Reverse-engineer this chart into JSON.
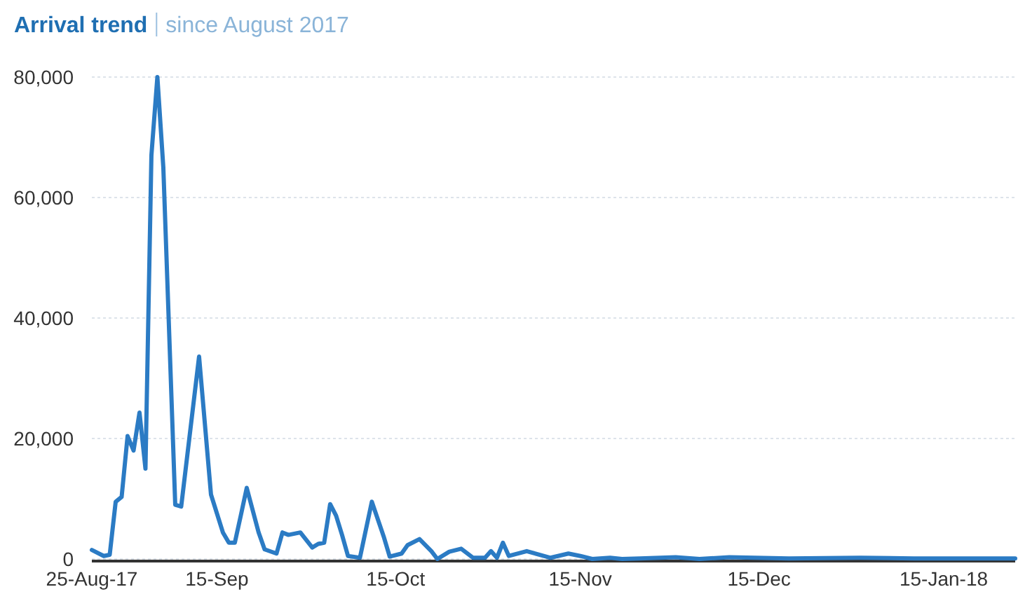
{
  "chart_data": {
    "type": "line",
    "title": "Arrival trend",
    "subtitle": "since August 2017",
    "x": [
      "2017-08-25",
      "2017-08-27",
      "2017-08-28",
      "2017-08-29",
      "2017-08-30",
      "2017-08-31",
      "2017-09-01",
      "2017-09-02",
      "2017-09-03",
      "2017-09-04",
      "2017-09-05",
      "2017-09-06",
      "2017-09-08",
      "2017-09-09",
      "2017-09-12",
      "2017-09-14",
      "2017-09-16",
      "2017-09-17",
      "2017-09-18",
      "2017-09-19",
      "2017-09-20",
      "2017-09-22",
      "2017-09-23",
      "2017-09-25",
      "2017-09-26",
      "2017-09-27",
      "2017-09-29",
      "2017-10-01",
      "2017-10-02",
      "2017-10-03",
      "2017-10-04",
      "2017-10-05",
      "2017-10-06",
      "2017-10-07",
      "2017-10-09",
      "2017-10-11",
      "2017-10-13",
      "2017-10-14",
      "2017-10-16",
      "2017-10-17",
      "2017-10-19",
      "2017-10-21",
      "2017-10-22",
      "2017-10-24",
      "2017-10-26",
      "2017-10-28",
      "2017-10-30",
      "2017-10-31",
      "2017-11-01",
      "2017-11-02",
      "2017-11-03",
      "2017-11-06",
      "2017-11-10",
      "2017-11-13",
      "2017-11-15",
      "2017-11-17",
      "2017-11-20",
      "2017-11-22",
      "2017-11-25",
      "2017-12-01",
      "2017-12-05",
      "2017-12-10",
      "2017-12-20",
      "2018-01-01",
      "2018-01-10",
      "2018-01-20",
      "2018-01-27"
    ],
    "series": [
      {
        "color": "#2b7bc4",
        "values": [
          1500,
          500,
          700,
          9500,
          10300,
          20400,
          18000,
          24300,
          15000,
          67000,
          80000,
          65000,
          9000,
          8700,
          33600,
          10700,
          4400,
          2700,
          2700,
          7200,
          11800,
          4400,
          1600,
          900,
          4400,
          4000,
          4400,
          1900,
          2500,
          2700,
          9100,
          7200,
          4000,
          500,
          200,
          9500,
          3700,
          400,
          900,
          2300,
          3300,
          1300,
          0,
          1200,
          1700,
          200,
          200,
          1300,
          200,
          2700,
          500,
          1300,
          200,
          900,
          500,
          0,
          200,
          0,
          100,
          300,
          0,
          300,
          100,
          200,
          100,
          100,
          100
        ]
      }
    ],
    "xlim": [
      "2017-08-25",
      "2018-01-27"
    ],
    "xticks": [
      {
        "value": "2017-08-25",
        "label": "25-Aug-17"
      },
      {
        "value": "2017-09-15",
        "label": "15-Sep"
      },
      {
        "value": "2017-10-15",
        "label": "15-Oct"
      },
      {
        "value": "2017-11-15",
        "label": "15-Nov"
      },
      {
        "value": "2017-12-15",
        "label": "15-Dec"
      },
      {
        "value": "2018-01-15",
        "label": "15-Jan-18"
      }
    ],
    "ylim": [
      0,
      80000
    ],
    "yticks": [
      {
        "value": 0,
        "label": "0"
      },
      {
        "value": 20000,
        "label": "20,000"
      },
      {
        "value": 40000,
        "label": "40,000"
      },
      {
        "value": 60000,
        "label": "60,000"
      },
      {
        "value": 80000,
        "label": "80,000"
      }
    ],
    "grid": "y",
    "line_style": "solid",
    "marker": "none"
  }
}
